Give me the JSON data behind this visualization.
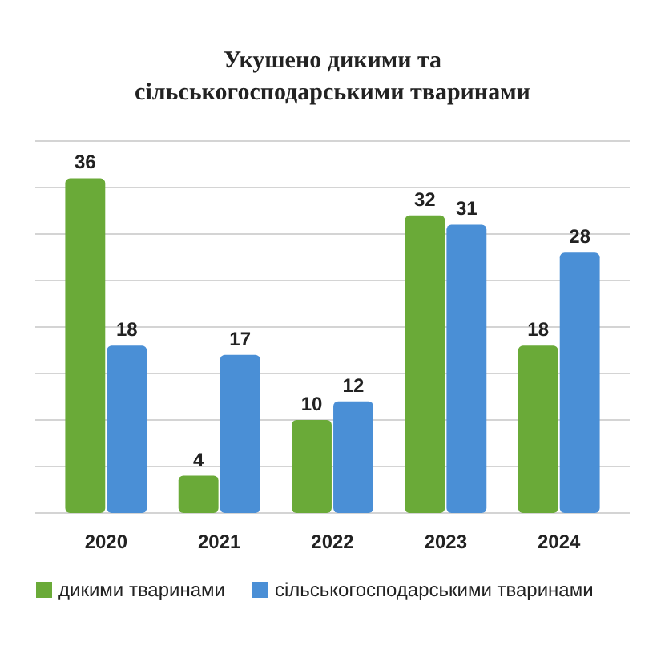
{
  "chart_data": {
    "type": "bar",
    "title": "Укушено дикими та сільськогосподарськими тваринами",
    "categories": [
      "2020",
      "2021",
      "2022",
      "2023",
      "2024"
    ],
    "series": [
      {
        "name": "дикими тваринами",
        "color": "#6aaa38",
        "values": [
          36,
          4,
          10,
          32,
          18
        ]
      },
      {
        "name": "сільськогосподарськими тваринами",
        "color": "#4a8fd6",
        "values": [
          18,
          17,
          12,
          31,
          28
        ]
      }
    ],
    "ylim": [
      0,
      40
    ],
    "yticks": [
      {
        "value": 0,
        "label": null
      },
      {
        "value": 5,
        "label": null
      },
      {
        "value": 10,
        "label": null
      },
      {
        "value": 15,
        "label": null
      },
      {
        "value": 20,
        "label": null
      },
      {
        "value": 25,
        "label": null
      },
      {
        "value": 30,
        "label": null
      },
      {
        "value": 35,
        "label": null
      },
      {
        "value": 40,
        "label": null
      }
    ],
    "tick_labels": "x",
    "grid": "y",
    "data_labels": true,
    "legend": "bottom"
  }
}
